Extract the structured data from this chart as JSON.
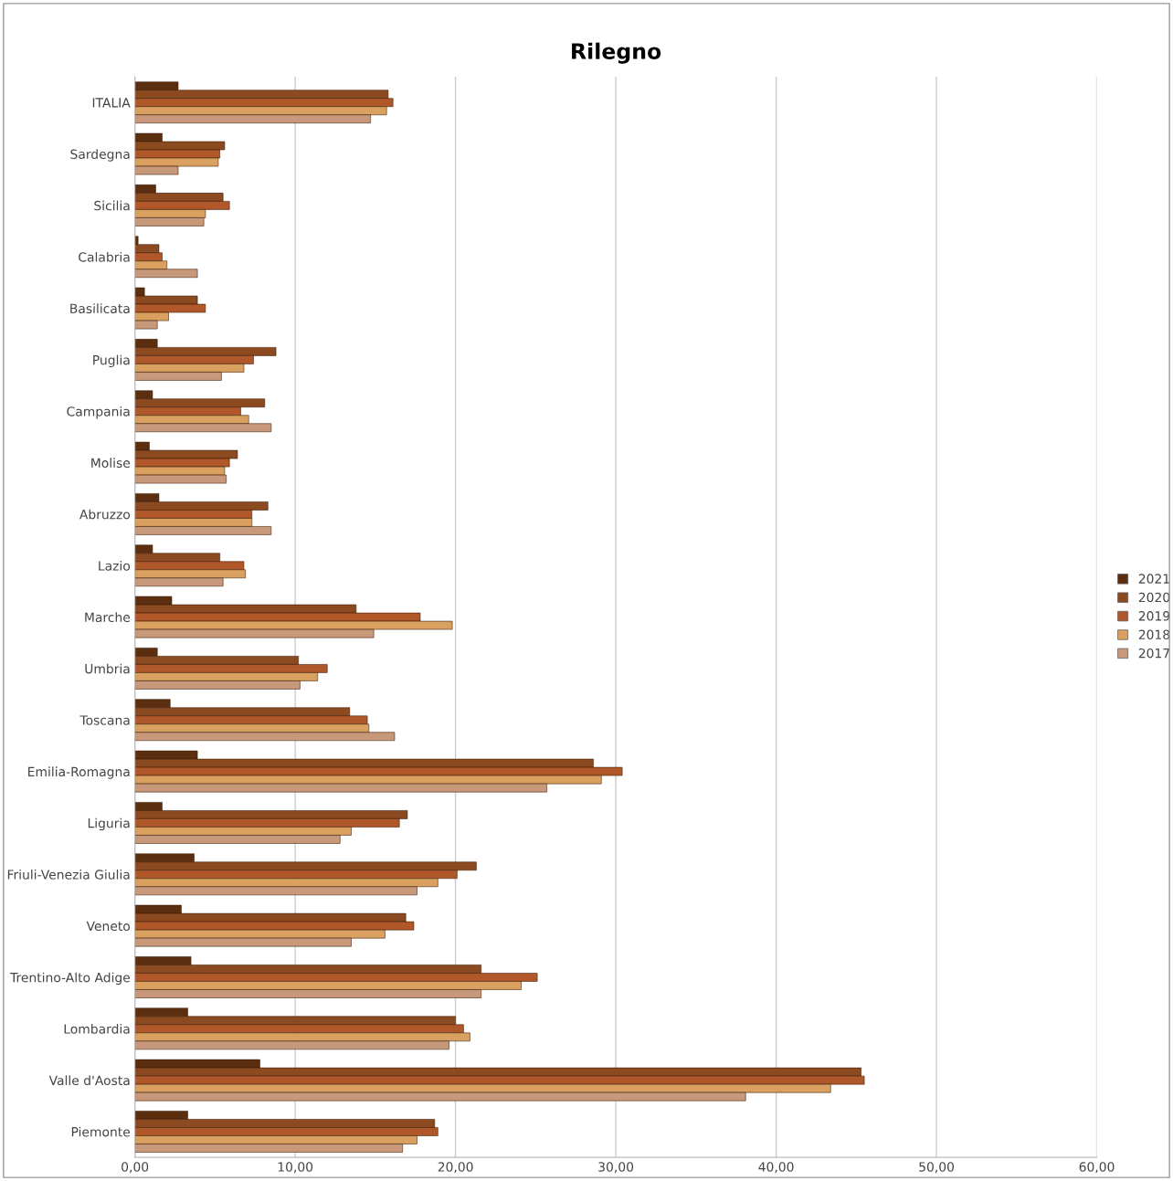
{
  "chart_data": {
    "type": "bar",
    "orientation": "horizontal",
    "title": "Rilegno",
    "categories": [
      "ITALIA",
      "Sardegna",
      "Sicilia",
      "Calabria",
      "Basilicata",
      "Puglia",
      "Campania",
      "Molise",
      "Abruzzo",
      "Lazio",
      "Marche",
      "Umbria",
      "Toscana",
      "Emilia-Romagna",
      "Liguria",
      "Friuli-Venezia Giulia",
      "Veneto",
      "Trentino-Alto Adige",
      "Lombardia",
      "Valle d'Aosta",
      "Piemonte"
    ],
    "series": [
      {
        "name": "2021",
        "color": "#5c2e10",
        "values": [
          2.7,
          1.7,
          1.3,
          0.2,
          0.6,
          1.4,
          1.1,
          0.9,
          1.5,
          1.1,
          2.3,
          1.4,
          2.2,
          3.9,
          1.7,
          3.7,
          2.9,
          3.5,
          3.3,
          7.8,
          3.3
        ]
      },
      {
        "name": "2020",
        "color": "#8b4a20",
        "values": [
          15.8,
          5.6,
          5.5,
          1.5,
          3.9,
          8.8,
          8.1,
          6.4,
          8.3,
          5.3,
          13.8,
          10.2,
          13.4,
          28.6,
          17.0,
          21.3,
          16.9,
          21.6,
          20.0,
          45.3,
          18.7
        ]
      },
      {
        "name": "2019",
        "color": "#b0582a",
        "values": [
          16.1,
          5.3,
          5.9,
          1.7,
          4.4,
          7.4,
          6.6,
          5.9,
          7.3,
          6.8,
          17.8,
          12.0,
          14.5,
          30.4,
          16.5,
          20.1,
          17.4,
          25.1,
          20.5,
          45.5,
          18.9
        ]
      },
      {
        "name": "2018",
        "color": "#d9a060",
        "values": [
          15.7,
          5.2,
          4.4,
          2.0,
          2.1,
          6.8,
          7.1,
          5.6,
          7.3,
          6.9,
          19.8,
          11.4,
          14.6,
          29.1,
          13.5,
          18.9,
          15.6,
          24.1,
          20.9,
          43.4,
          17.6
        ]
      },
      {
        "name": "2017",
        "color": "#c8987a",
        "values": [
          14.7,
          2.7,
          4.3,
          3.9,
          1.4,
          5.4,
          8.5,
          5.7,
          8.5,
          5.5,
          14.9,
          10.3,
          16.2,
          25.7,
          12.8,
          17.6,
          13.5,
          21.6,
          19.6,
          38.1,
          16.7
        ]
      }
    ],
    "xlim": [
      0,
      60
    ],
    "xticks": [
      {
        "value": 0,
        "label": "0,00"
      },
      {
        "value": 10,
        "label": "10,00"
      },
      {
        "value": 20,
        "label": "20,00"
      },
      {
        "value": 30,
        "label": "30,00"
      },
      {
        "value": 40,
        "label": "40,00"
      },
      {
        "value": 50,
        "label": "50,00"
      },
      {
        "value": 60,
        "label": "60,00"
      }
    ],
    "grid": "x",
    "legend": "right"
  }
}
